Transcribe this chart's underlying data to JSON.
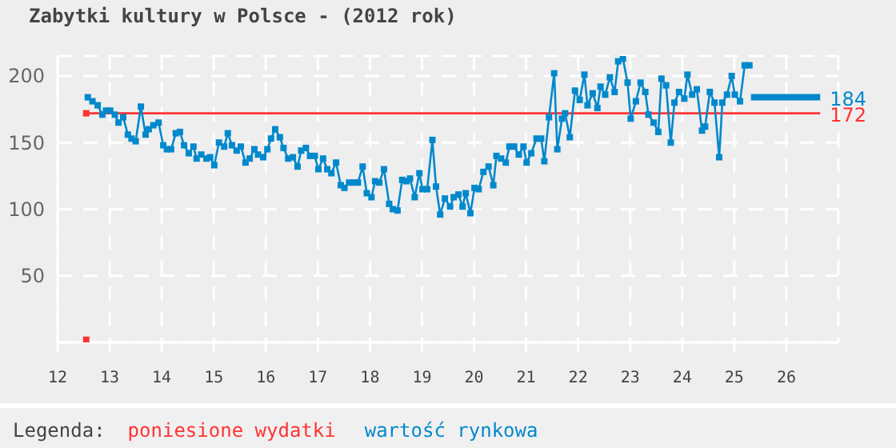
{
  "chart_data": {
    "type": "line",
    "title": "Zabytki kultury w Polsce - (2012 rok)",
    "xlim": [
      12,
      27
    ],
    "xticks": [
      12,
      13,
      14,
      15,
      16,
      17,
      18,
      19,
      20,
      21,
      22,
      23,
      24,
      25,
      26
    ],
    "ylim": [
      0,
      215
    ],
    "yticks": [
      50,
      100,
      150,
      200
    ],
    "grid": true,
    "legend": "bottom",
    "legend_title": "Legenda:",
    "series": [
      {
        "name": "poniesione wydatki",
        "color": "#ff3333",
        "marker": "none",
        "x": [
          12.55,
          26.65
        ],
        "values": [
          172,
          172
        ],
        "value_labels": [
          null,
          "172"
        ]
      },
      {
        "name": "wartość rynkowa",
        "color": "#0088cc",
        "marker": "square",
        "x": [
          12.58,
          12.67,
          12.77,
          12.86,
          12.93,
          13.01,
          13.1,
          13.17,
          13.26,
          13.35,
          13.42,
          13.5,
          13.6,
          13.69,
          13.75,
          13.84,
          13.94,
          14.03,
          14.1,
          14.18,
          14.27,
          14.35,
          14.43,
          14.52,
          14.61,
          14.67,
          14.76,
          14.86,
          14.93,
          15.01,
          15.1,
          15.2,
          15.27,
          15.35,
          15.44,
          15.52,
          15.61,
          15.69,
          15.78,
          15.85,
          15.95,
          16.03,
          16.1,
          16.18,
          16.27,
          16.34,
          16.43,
          16.52,
          16.61,
          16.68,
          16.77,
          16.85,
          16.94,
          17.01,
          17.1,
          17.18,
          17.26,
          17.35,
          17.44,
          17.51,
          17.6,
          17.69,
          17.77,
          17.86,
          17.94,
          18.03,
          18.1,
          18.18,
          18.27,
          18.37,
          18.44,
          18.53,
          18.62,
          18.7,
          18.77,
          18.86,
          18.95,
          19.01,
          19.1,
          19.2,
          19.27,
          19.35,
          19.44,
          19.54,
          19.61,
          19.7,
          19.78,
          19.84,
          19.93,
          20.01,
          20.09,
          20.18,
          20.28,
          20.37,
          20.43,
          20.52,
          20.61,
          20.68,
          20.77,
          20.86,
          20.95,
          21.01,
          21.1,
          21.2,
          21.29,
          21.35,
          21.44,
          21.54,
          21.6,
          21.69,
          21.75,
          21.84,
          21.94,
          22.03,
          22.12,
          22.18,
          22.28,
          22.37,
          22.43,
          22.52,
          22.61,
          22.7,
          22.77,
          22.86,
          22.95,
          23.01,
          23.11,
          23.2,
          23.29,
          23.35,
          23.45,
          23.54,
          23.6,
          23.69,
          23.78,
          23.85,
          23.94,
          24.04,
          24.1,
          24.19,
          24.28,
          24.38,
          24.44,
          24.53,
          24.62,
          24.71,
          24.77,
          24.86,
          24.95,
          25.01,
          25.11,
          25.2,
          25.29
        ],
        "values": [
          184,
          181,
          178,
          171,
          174,
          174,
          171,
          165,
          169,
          156,
          153,
          151,
          177,
          156,
          160,
          163,
          165,
          148,
          145,
          145,
          157,
          158,
          148,
          142,
          147,
          138,
          141,
          138,
          139,
          133,
          150,
          147,
          157,
          148,
          144,
          147,
          135,
          138,
          145,
          141,
          139,
          145,
          153,
          160,
          154,
          146,
          138,
          139,
          132,
          144,
          146,
          140,
          140,
          130,
          138,
          130,
          127,
          135,
          118,
          116,
          120,
          120,
          120,
          132,
          112,
          109,
          121,
          120,
          130,
          104,
          100,
          99,
          122,
          121,
          123,
          109,
          127,
          115,
          115,
          152,
          117,
          96,
          108,
          102,
          109,
          111,
          102,
          112,
          97,
          116,
          115,
          128,
          132,
          118,
          140,
          138,
          135,
          147,
          147,
          141,
          147,
          135,
          142,
          153,
          153,
          136,
          169,
          202,
          145,
          168,
          172,
          154,
          189,
          182,
          201,
          178,
          187,
          176,
          192,
          186,
          199,
          188,
          211,
          213,
          195,
          168,
          181,
          195,
          188,
          171,
          165,
          158,
          198,
          193,
          150,
          180,
          188,
          183,
          201,
          186,
          190,
          159,
          162,
          188,
          180,
          139,
          180,
          186,
          200,
          186,
          181,
          208,
          208
        ]
      },
      {
        "color": "#0088cc",
        "marker": "none",
        "x": [
          25.32,
          26.65
        ],
        "values": [
          184,
          184
        ],
        "value_labels": [
          null,
          "184"
        ]
      },
      {
        "color": "#ff3333",
        "type": "scatter",
        "marker": "square",
        "x": [
          12.55,
          12.55
        ],
        "values": [
          172,
          2
        ]
      }
    ]
  }
}
